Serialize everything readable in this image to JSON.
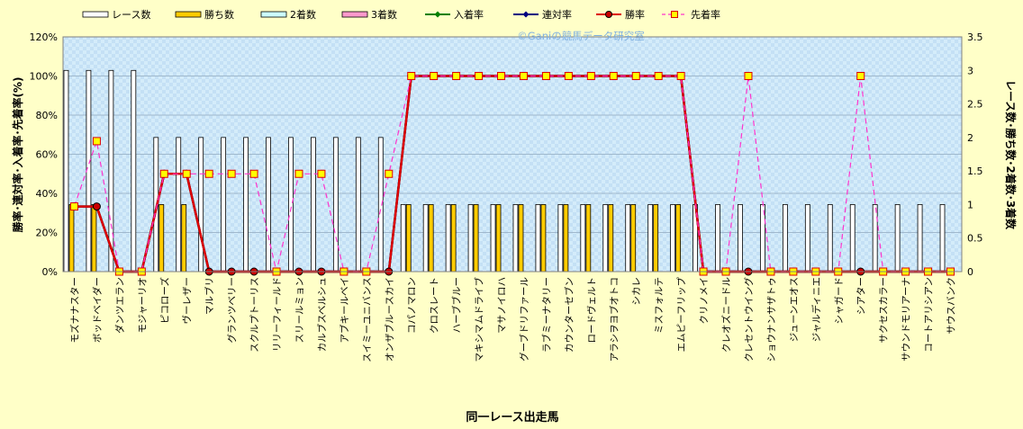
{
  "chart_data": {
    "type": "bar",
    "watermark": "©Ganiの競馬データ研究室",
    "xlabel": "同一レース出走馬",
    "ylabel_left": "勝率･連対率･入着率･先着率(%)",
    "ylabel_right": "レース数･勝ち数･2着数･3着数",
    "ylim_left": [
      0,
      120
    ],
    "ylim_right": [
      0,
      3.5
    ],
    "yticks_left": [
      "0%",
      "20%",
      "40%",
      "60%",
      "80%",
      "100%",
      "120%"
    ],
    "yticks_right": [
      "0",
      "0.5",
      "1",
      "1.5",
      "2",
      "2.5",
      "3",
      "3.5"
    ],
    "legend_position": "top",
    "grid": true,
    "categories": [
      "モズナナスター",
      "ボッドベイダー",
      "ダンツエラン",
      "モジャーリオ",
      "ピコローズ",
      "ヴーレザー",
      "マルブリ",
      "グランツベリー",
      "スクルプトーリス",
      "リリーフィールド",
      "スリールミョン",
      "カルブスベルシュ",
      "アブキールベイ",
      "スイミーユニバンス",
      "オンザブルースカイ",
      "コパノマロン",
      "クロスレート",
      "ハーブブルー",
      "マキシマムドライブ",
      "マサノイロハ",
      "グーブドリファール",
      "ラブミーナタリー",
      "カウンターセブン",
      "ロードヴェルト",
      "アラシヲヨブオトコ",
      "シカレ",
      "ミスフォルテ",
      "エムピーフリップ",
      "クリノメイ",
      "クレオズニードル",
      "クレセントウイング",
      "ショウナンサザトゥ",
      "ジューンエオス",
      "ジャルディニエ",
      "シャガード",
      "シアター",
      "サクセスカラー",
      "サウンドモリアーナ",
      "コートアリシアン",
      "サウスバンク"
    ],
    "series": [
      {
        "name": "レース数",
        "kind": "bar",
        "axis": "right",
        "color": "#ffffff",
        "values": [
          3,
          3,
          3,
          3,
          2,
          2,
          2,
          2,
          2,
          2,
          2,
          2,
          2,
          2,
          2,
          1,
          1,
          1,
          1,
          1,
          1,
          1,
          1,
          1,
          1,
          1,
          1,
          1,
          1,
          1,
          1,
          1,
          1,
          1,
          1,
          1,
          1,
          1,
          1,
          1
        ]
      },
      {
        "name": "勝ち数",
        "kind": "bar",
        "axis": "right",
        "color": "#ffcc00",
        "values": [
          1,
          1,
          0,
          0,
          1,
          1,
          0,
          0,
          0,
          0,
          0,
          0,
          0,
          0,
          0,
          1,
          1,
          1,
          1,
          1,
          1,
          1,
          1,
          1,
          1,
          1,
          1,
          1,
          0,
          0,
          0,
          0,
          0,
          0,
          0,
          0,
          0,
          0,
          0,
          0
        ]
      },
      {
        "name": "2着数",
        "kind": "bar",
        "axis": "right",
        "color": "#ccffff",
        "values": [
          0,
          0,
          0,
          0,
          0,
          0,
          0,
          0,
          0,
          0,
          0,
          0,
          0,
          0,
          0,
          0,
          0,
          0,
          0,
          0,
          0,
          0,
          0,
          0,
          0,
          0,
          0,
          0,
          0,
          0,
          0,
          0,
          0,
          0,
          0,
          0,
          0,
          0,
          0,
          0
        ]
      },
      {
        "name": "3着数",
        "kind": "bar",
        "axis": "right",
        "color": "#ff99cc",
        "values": [
          0,
          0,
          0,
          0,
          0,
          0,
          0,
          0,
          0,
          0,
          0,
          0,
          0,
          0,
          0,
          0,
          0,
          0,
          0,
          0,
          0,
          0,
          0,
          0,
          0,
          0,
          0,
          0,
          0,
          0,
          0,
          0,
          0,
          0,
          0,
          0,
          0,
          0,
          0,
          0
        ]
      },
      {
        "name": "入着率",
        "kind": "line",
        "axis": "left",
        "color": "#008000",
        "marker": "diamond",
        "values": [
          33.3,
          33.3,
          0,
          0,
          50,
          50,
          0,
          0,
          0,
          0,
          0,
          0,
          0,
          0,
          0,
          100,
          100,
          100,
          100,
          100,
          100,
          100,
          100,
          100,
          100,
          100,
          100,
          100,
          0,
          0,
          0,
          0,
          0,
          0,
          0,
          0,
          0,
          0,
          0,
          0
        ]
      },
      {
        "name": "連対率",
        "kind": "line",
        "axis": "left",
        "color": "#000080",
        "marker": "diamond",
        "values": [
          33.3,
          33.3,
          0,
          0,
          50,
          50,
          0,
          0,
          0,
          0,
          0,
          0,
          0,
          0,
          0,
          100,
          100,
          100,
          100,
          100,
          100,
          100,
          100,
          100,
          100,
          100,
          100,
          100,
          0,
          0,
          0,
          0,
          0,
          0,
          0,
          0,
          0,
          0,
          0,
          0
        ]
      },
      {
        "name": "勝率",
        "kind": "line",
        "axis": "left",
        "color": "#dd0000",
        "marker": "circle",
        "values": [
          33.3,
          33.3,
          0,
          0,
          50,
          50,
          0,
          0,
          0,
          0,
          0,
          0,
          0,
          0,
          0,
          100,
          100,
          100,
          100,
          100,
          100,
          100,
          100,
          100,
          100,
          100,
          100,
          100,
          0,
          0,
          0,
          0,
          0,
          0,
          0,
          0,
          0,
          0,
          0,
          0
        ]
      },
      {
        "name": "先着率",
        "kind": "line",
        "axis": "left",
        "color": "#ff33cc",
        "marker": "square",
        "dashed": true,
        "values": [
          33.3,
          66.7,
          0,
          0,
          50,
          50,
          50,
          50,
          50,
          0,
          50,
          50,
          0,
          0,
          50,
          100,
          100,
          100,
          100,
          100,
          100,
          100,
          100,
          100,
          100,
          100,
          100,
          100,
          0,
          0,
          100,
          0,
          0,
          0,
          0,
          100,
          0,
          0,
          0,
          0
        ]
      }
    ]
  }
}
